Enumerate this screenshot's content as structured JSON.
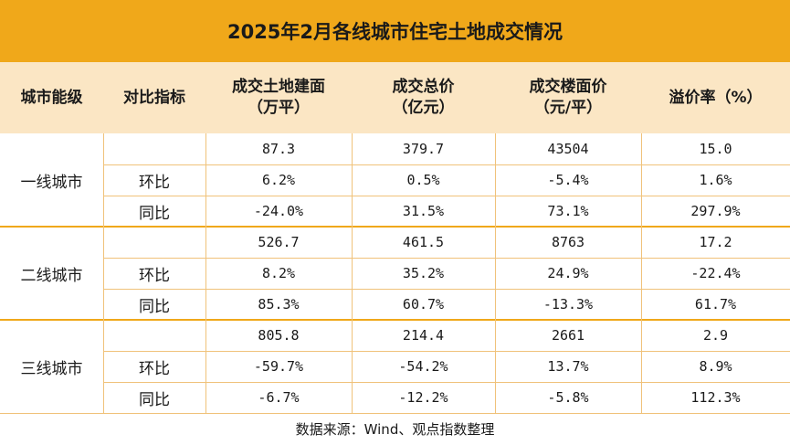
{
  "title": "2025年2月各线城市住宅土地成交情况",
  "headers": {
    "tier": "城市能级",
    "metric": "对比指标",
    "area_line1": "成交土地建面",
    "area_line2": "（万平）",
    "total_line1": "成交总价",
    "total_line2": "（亿元）",
    "price_line1": "成交楼面价",
    "price_line2": "（元/平）",
    "premium": "溢价率（%）"
  },
  "groups": [
    {
      "name": "一线城市",
      "rows": [
        {
          "label": "",
          "area": "87.3",
          "total": "379.7",
          "price": "43504",
          "premium": "15.0"
        },
        {
          "label": "环比",
          "area": "6.2%",
          "total": "0.5%",
          "price": "-5.4%",
          "premium": "1.6%"
        },
        {
          "label": "同比",
          "area": "-24.0%",
          "total": "31.5%",
          "price": "73.1%",
          "premium": "297.9%"
        }
      ]
    },
    {
      "name": "二线城市",
      "rows": [
        {
          "label": "",
          "area": "526.7",
          "total": "461.5",
          "price": "8763",
          "premium": "17.2"
        },
        {
          "label": "环比",
          "area": "8.2%",
          "total": "35.2%",
          "price": "24.9%",
          "premium": "-22.4%"
        },
        {
          "label": "同比",
          "area": "85.3%",
          "total": "60.7%",
          "price": "-13.3%",
          "premium": "61.7%"
        }
      ]
    },
    {
      "name": "三线城市",
      "rows": [
        {
          "label": "",
          "area": "805.8",
          "total": "214.4",
          "price": "2661",
          "premium": "2.9"
        },
        {
          "label": "环比",
          "area": "-59.7%",
          "total": "-54.2%",
          "price": "13.7%",
          "premium": "8.9%"
        },
        {
          "label": "同比",
          "area": "-6.7%",
          "total": "-12.2%",
          "price": "-5.8%",
          "premium": "112.3%"
        }
      ]
    }
  ],
  "footer": "数据来源：Wind、观点指数整理",
  "colors": {
    "title_bg": "#f0a81a",
    "header_bg": "#fbe6c4",
    "grid": "#f0c27a"
  }
}
